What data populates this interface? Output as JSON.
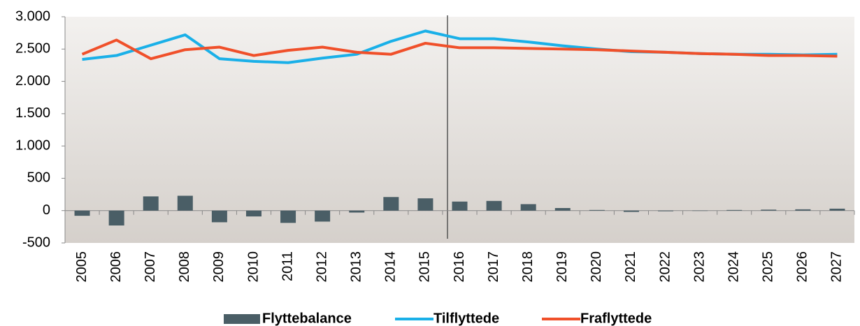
{
  "chart_data": {
    "type": "bar",
    "categories": [
      "2005",
      "2006",
      "2007",
      "2008",
      "2009",
      "2010",
      "2011",
      "2012",
      "2013",
      "2014",
      "2015",
      "2016",
      "2017",
      "2018",
      "2019",
      "2020",
      "2021",
      "2022",
      "2023",
      "2024",
      "2025",
      "2026",
      "2027"
    ],
    "series": [
      {
        "name": "Flyttebalance",
        "type": "bar",
        "color": "#4a5e66",
        "values": [
          -80,
          -230,
          220,
          230,
          -180,
          -90,
          -190,
          -170,
          -30,
          210,
          190,
          140,
          150,
          100,
          40,
          10,
          -20,
          -10,
          -5,
          10,
          15,
          20,
          30
        ]
      },
      {
        "name": "Tilflyttede",
        "type": "line",
        "color": "#1ab0e8",
        "values": [
          2340,
          2400,
          2560,
          2720,
          2350,
          2310,
          2290,
          2360,
          2420,
          2620,
          2780,
          2660,
          2660,
          2610,
          2550,
          2500,
          2460,
          2450,
          2430,
          2420,
          2420,
          2410,
          2420
        ]
      },
      {
        "name": "Fraflyttede",
        "type": "line",
        "color": "#f0502a",
        "values": [
          2420,
          2640,
          2350,
          2490,
          2530,
          2400,
          2480,
          2530,
          2450,
          2420,
          2590,
          2520,
          2520,
          2510,
          2500,
          2490,
          2470,
          2450,
          2430,
          2420,
          2400,
          2400,
          2390
        ]
      }
    ],
    "ylim": [
      -500,
      3000
    ],
    "yticks": [
      {
        "value": 3000,
        "label": "3.000"
      },
      {
        "value": 2500,
        "label": "2.500"
      },
      {
        "value": 2000,
        "label": "2.000"
      },
      {
        "value": 1500,
        "label": "1.500"
      },
      {
        "value": 1000,
        "label": "1.000"
      },
      500,
      0,
      -500
    ],
    "grid": false,
    "legend": "bottom"
  }
}
